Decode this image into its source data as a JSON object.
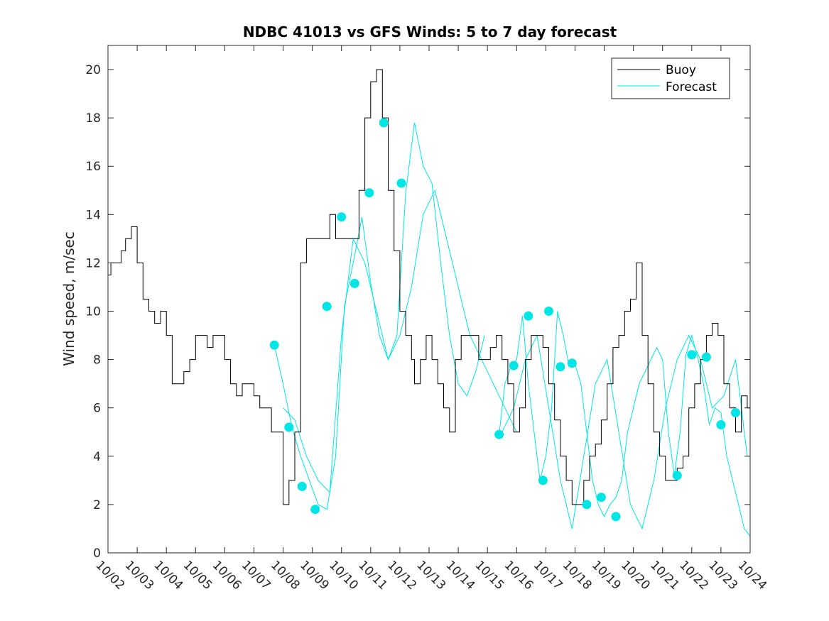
{
  "chart_data": {
    "type": "line",
    "title": "NDBC 41013 vs GFS Winds: 5 to 7 day forecast",
    "xlabel": "",
    "ylabel": "Wind speed, m/sec",
    "xlim_days": [
      0,
      22
    ],
    "ylim": [
      0,
      21
    ],
    "yticks": [
      0,
      2,
      4,
      6,
      8,
      10,
      12,
      14,
      16,
      18,
      20
    ],
    "xtick_labels": [
      "10/02",
      "10/03",
      "10/04",
      "10/05",
      "10/06",
      "10/07",
      "10/08",
      "10/09",
      "10/10",
      "10/11",
      "10/12",
      "10/13",
      "10/14",
      "10/15",
      "10/16",
      "10/17",
      "10/18",
      "10/19",
      "10/20",
      "10/21",
      "10/22",
      "10/23",
      "10/24"
    ],
    "legend": {
      "position": "top-right",
      "entries": [
        "Buoy",
        "Forecast"
      ]
    },
    "colors": {
      "buoy": "#000000",
      "forecast": "#00e5e5",
      "marker": "#00e5e5",
      "axes": "#262626"
    },
    "buoy": {
      "name": "Buoy",
      "x": [
        0.0,
        0.1,
        0.3,
        0.45,
        0.6,
        0.8,
        1.0,
        1.2,
        1.4,
        1.5,
        1.6,
        1.8,
        2.0,
        2.2,
        2.4,
        2.6,
        2.8,
        3.0,
        3.2,
        3.4,
        3.6,
        3.8,
        4.0,
        4.2,
        4.4,
        4.6,
        4.8,
        5.0,
        5.2,
        5.4,
        5.6,
        5.8,
        6.0,
        6.2,
        6.4,
        6.6,
        6.8,
        7.0,
        7.2,
        7.4,
        7.6,
        7.8,
        8.0,
        8.2,
        8.4,
        8.6,
        8.8,
        9.0,
        9.2,
        9.4,
        9.6,
        9.8,
        10.0,
        10.2,
        10.4,
        10.5,
        10.7,
        10.9,
        11.1,
        11.3,
        11.5,
        11.7,
        11.9,
        12.1,
        12.3,
        12.5,
        12.7,
        12.9,
        13.1,
        13.3,
        13.5,
        13.7,
        13.9,
        14.1,
        14.3,
        14.5,
        14.7,
        14.9,
        15.1,
        15.3,
        15.5,
        15.7,
        15.9,
        16.1,
        16.3,
        16.5,
        16.7,
        16.9,
        17.1,
        17.3,
        17.5,
        17.7,
        17.9,
        18.1,
        18.3,
        18.5,
        18.7,
        18.9,
        19.1,
        19.3,
        19.5,
        19.7,
        19.9,
        20.1,
        20.3,
        20.5,
        20.7,
        20.9,
        21.1,
        21.3,
        21.5,
        21.7,
        21.9,
        22.0
      ],
      "y": [
        11.5,
        12,
        12,
        12.5,
        13,
        13.5,
        12,
        10.5,
        10,
        10,
        9.5,
        10,
        9,
        7,
        7,
        7.5,
        8,
        9,
        9,
        8.5,
        9,
        9,
        8,
        7,
        6.5,
        7,
        7,
        6.5,
        6,
        6,
        5,
        5,
        2,
        3,
        5,
        12,
        13,
        13,
        13,
        13,
        14,
        13,
        13,
        13,
        13,
        15,
        18,
        19.5,
        20,
        18,
        15,
        12.5,
        10,
        9,
        8,
        7,
        8,
        9,
        8,
        7,
        6,
        5,
        8,
        9,
        9,
        9,
        8,
        8,
        8.5,
        9,
        8,
        7,
        5,
        6,
        8,
        9,
        9,
        8.5,
        7,
        5.5,
        4,
        3,
        2,
        2,
        3,
        4,
        4.5,
        5.5,
        7,
        8.5,
        9,
        10,
        10.5,
        12,
        9,
        7,
        5,
        4,
        3,
        3,
        3.5,
        4,
        6,
        7,
        8,
        9,
        9.5,
        9,
        7,
        6,
        5,
        6.5,
        6,
        5
      ]
    },
    "forecast": {
      "name": "Forecast",
      "series": [
        {
          "x": [
            5.7,
            6.0,
            6.3,
            6.6,
            6.9,
            7.2,
            7.5,
            7.8,
            8.1,
            8.4,
            8.7,
            9.0,
            9.3,
            9.6,
            9.9,
            10.2,
            10.5,
            10.8,
            11.1,
            11.4,
            11.7,
            12.0,
            12.3,
            12.6,
            12.9
          ],
          "y": [
            8.6,
            7,
            5.2,
            4,
            3,
            2,
            1.8,
            4,
            10.2,
            12,
            13.9,
            11.2,
            9,
            8,
            9,
            14.9,
            17.8,
            16,
            15.3,
            12,
            9,
            7,
            6.5,
            7.5,
            9
          ]
        },
        {
          "x": [
            6.0,
            6.4,
            6.8,
            7.2,
            7.6,
            8.0,
            8.4,
            8.8,
            9.2,
            9.6,
            10.0,
            10.4,
            10.8,
            11.2,
            11.6,
            12.0,
            12.4,
            12.8,
            13.2,
            13.6,
            14.0
          ],
          "y": [
            6,
            5.5,
            4,
            3,
            2.5,
            9,
            13,
            12,
            10,
            8,
            9,
            11,
            14,
            15,
            13,
            11,
            9,
            8,
            7,
            6,
            5
          ]
        },
        {
          "x": [
            13.4,
            13.6,
            13.8,
            14.0,
            14.2,
            14.4,
            14.6,
            14.8,
            15.0,
            15.2,
            15.4,
            15.6,
            15.8,
            16.0,
            16.2,
            16.4,
            16.6,
            16.8,
            17.0,
            17.2,
            17.4,
            17.6,
            17.8,
            18.0,
            18.2,
            18.4,
            18.6,
            18.8,
            19.0,
            19.2,
            19.4,
            19.6,
            19.8,
            20.0,
            20.2,
            20.4,
            20.6,
            20.8,
            21.0,
            21.2,
            21.4,
            21.6,
            21.8,
            22.0
          ],
          "y": [
            4.9,
            7,
            7.7,
            8,
            9.8,
            7,
            5,
            3,
            4,
            6,
            10,
            9,
            7.7,
            7.8,
            7,
            5,
            3,
            2,
            1.5,
            2,
            2.3,
            3,
            5,
            6,
            7,
            7.5,
            8,
            8.5,
            8,
            5,
            3.2,
            5,
            8.2,
            9,
            8.1,
            7,
            5.3,
            6,
            5.8,
            4,
            3,
            2,
            1,
            0.7
          ]
        },
        {
          "x": [
            13.5,
            13.9,
            14.3,
            14.7,
            15.1,
            15.5,
            15.9,
            16.3,
            16.7,
            17.1,
            17.5,
            17.9,
            18.3,
            18.7,
            19.1,
            19.5,
            19.9,
            20.3,
            20.7,
            21.1,
            21.5,
            21.9
          ],
          "y": [
            5,
            6,
            8,
            9,
            6,
            3,
            1,
            4,
            7,
            8,
            5,
            2,
            1,
            3,
            6,
            8,
            9,
            8,
            6,
            6.5,
            8,
            4
          ]
        }
      ]
    },
    "forecast_markers": {
      "x": [
        5.7,
        6.2,
        6.65,
        7.1,
        7.5,
        8.0,
        8.45,
        8.95,
        9.45,
        10.05,
        13.4,
        13.9,
        14.4,
        14.9,
        15.1,
        15.5,
        15.9,
        16.4,
        16.9,
        17.4,
        19.5,
        20.0,
        20.5,
        21.0,
        21.5
      ],
      "y": [
        8.6,
        5.2,
        2.75,
        1.8,
        10.2,
        13.9,
        11.15,
        14.9,
        17.8,
        15.3,
        4.9,
        7.75,
        9.8,
        3.0,
        10.0,
        7.7,
        7.85,
        2.0,
        2.3,
        1.5,
        3.2,
        8.2,
        8.1,
        5.3,
        5.8
      ]
    }
  }
}
